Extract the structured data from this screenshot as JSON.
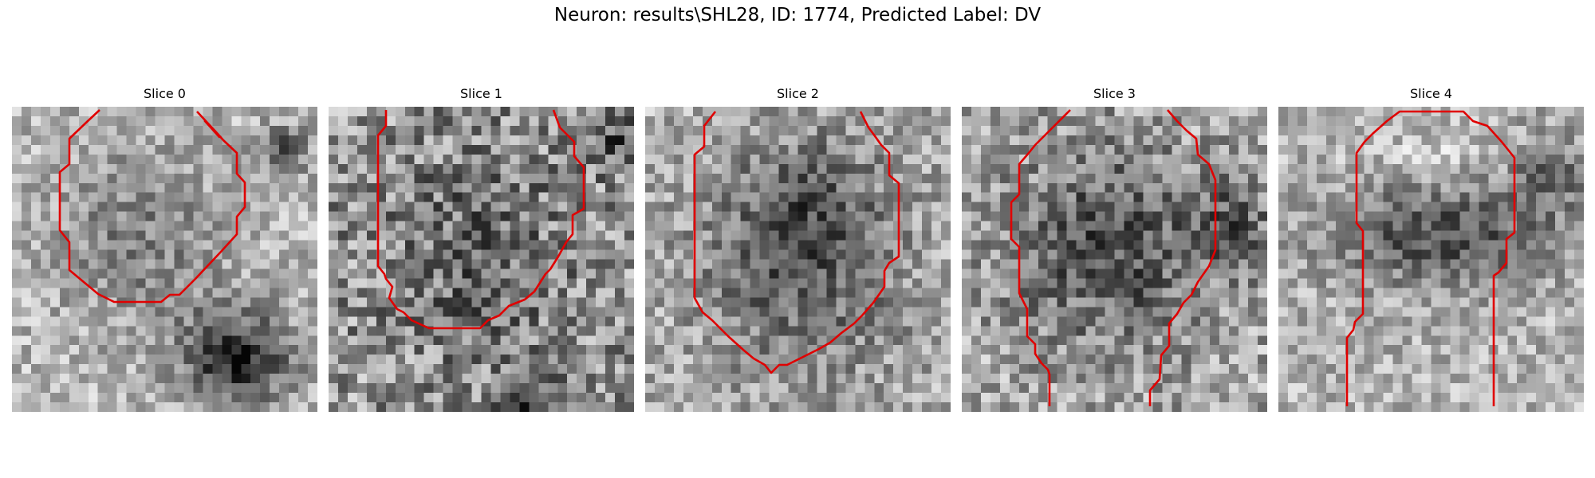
{
  "figure": {
    "title": "Neuron: results\\SHL28, ID: 1774, Predicted Label: DV",
    "contour_color": "#e00000",
    "colormap": "gray"
  },
  "slices": [
    {
      "title": "Slice 0"
    },
    {
      "title": "Slice 1"
    },
    {
      "title": "Slice 2"
    },
    {
      "title": "Slice 3"
    },
    {
      "title": "Slice 4"
    }
  ]
}
